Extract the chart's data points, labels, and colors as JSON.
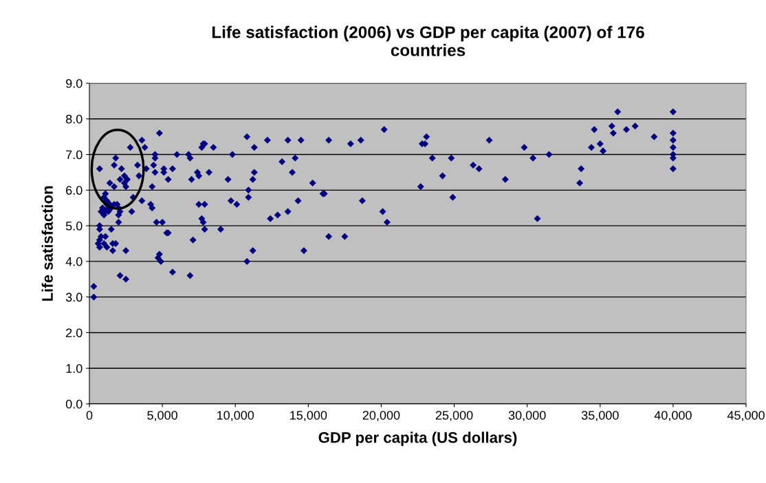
{
  "chart_data": {
    "type": "scatter",
    "title": "Life satisfaction (2006) vs GDP per capita (2007) of 176 countries",
    "xlabel": "GDP per capita (US dollars)",
    "ylabel": "Life satisfaction",
    "marker": "diamond",
    "grid": "y",
    "legend": false,
    "xlim": [
      0,
      45000
    ],
    "ylim": [
      0,
      9
    ],
    "xticks": [
      0,
      {
        "value": 5000,
        "label": "5,000"
      },
      {
        "value": 10000,
        "label": "10,000"
      },
      {
        "value": 15000,
        "label": "15,000"
      },
      {
        "value": 20000,
        "label": "20,000"
      },
      {
        "value": 25000,
        "label": "25,000"
      },
      {
        "value": 30000,
        "label": "30,000"
      },
      {
        "value": 35000,
        "label": "35,000"
      },
      {
        "value": 40000,
        "label": "40,000"
      },
      {
        "value": 45000,
        "label": "45,000"
      }
    ],
    "yticks": [
      {
        "value": 0,
        "label": "0.0"
      },
      {
        "value": 1,
        "label": "1.0"
      },
      {
        "value": 2,
        "label": "2.0"
      },
      {
        "value": 3,
        "label": "3.0"
      },
      {
        "value": 4,
        "label": "4.0"
      },
      {
        "value": 5,
        "label": "5.0"
      },
      {
        "value": 6,
        "label": "6.0"
      },
      {
        "value": 7,
        "label": "7.0"
      },
      {
        "value": 8,
        "label": "8.0"
      },
      {
        "value": 9,
        "label": "9.0"
      }
    ],
    "series": [
      {
        "color": "#000080",
        "x": [
          300,
          300,
          700,
          600,
          700,
          800,
          700,
          700,
          800,
          1000,
          1000,
          1100,
          700,
          1100,
          1200,
          1000,
          1200,
          1300,
          1300,
          1500,
          1400,
          1700,
          1800,
          1700,
          1600,
          1600,
          1800,
          1700,
          1900,
          2000,
          2000,
          2100,
          2000,
          2200,
          2100,
          2400,
          2400,
          2500,
          2600,
          2500,
          2100,
          2500,
          2800,
          2900,
          3000,
          3300,
          3400,
          3600,
          3600,
          3800,
          3900,
          1200,
          1400,
          1500,
          900,
          1100,
          4200,
          4300,
          4300,
          4400,
          4500,
          4500,
          4500,
          4600,
          4700,
          4800,
          4800,
          5000,
          4900,
          5100,
          5100,
          5300,
          5400,
          5400,
          5700,
          5700,
          6000,
          6800,
          6900,
          6900,
          7000,
          7100,
          7400,
          7500,
          7500,
          7700,
          7800,
          7900,
          7700,
          7800,
          7900,
          7900,
          8200,
          8500,
          9000,
          9500,
          9700,
          9800,
          10100,
          10800,
          10900,
          10900,
          10800,
          11200,
          11300,
          11200,
          11300,
          12200,
          12400,
          12900,
          13200,
          13600,
          13600,
          13900,
          14100,
          14300,
          14500,
          14700,
          15300,
          16000,
          16100,
          16400,
          16400,
          17500,
          17900,
          18600,
          18700,
          20100,
          20200,
          20400,
          22700,
          22800,
          23000,
          23100,
          23500,
          24200,
          24800,
          24900,
          26300,
          26700,
          27400,
          28500,
          29800,
          30400,
          30700,
          31500,
          33600,
          33700,
          34400,
          34600,
          35000,
          35200,
          35800,
          35900,
          36200,
          36800,
          37400,
          38700,
          40000,
          40000,
          40000,
          40000,
          40000,
          40000,
          40000
        ],
        "values": [
          3.3,
          3.0,
          4.4,
          4.5,
          4.6,
          4.7,
          4.9,
          5.0,
          5.4,
          5.3,
          5.8,
          5.9,
          6.6,
          4.7,
          4.4,
          4.5,
          5.6,
          5.5,
          5.4,
          4.9,
          6.2,
          6.7,
          6.9,
          6.1,
          4.5,
          4.3,
          4.5,
          5.6,
          5.6,
          5.5,
          5.3,
          5.4,
          5.1,
          6.6,
          6.3,
          6.4,
          6.2,
          6.1,
          6.3,
          4.3,
          3.6,
          3.5,
          7.2,
          5.4,
          5.8,
          6.7,
          6.4,
          5.7,
          7.4,
          7.2,
          6.6,
          5.7,
          5.6,
          5.5,
          5.5,
          5.4,
          5.6,
          5.5,
          6.1,
          6.7,
          7.0,
          6.9,
          6.5,
          5.1,
          4.1,
          4.2,
          7.6,
          5.1,
          4.0,
          6.6,
          6.5,
          4.8,
          4.8,
          6.3,
          6.6,
          3.7,
          7.0,
          7.0,
          6.9,
          3.6,
          6.3,
          4.6,
          6.5,
          6.4,
          5.6,
          5.2,
          5.1,
          5.6,
          7.2,
          7.3,
          7.3,
          4.9,
          6.5,
          7.2,
          4.9,
          6.3,
          5.7,
          7.0,
          5.6,
          7.5,
          6.0,
          5.8,
          4.0,
          6.3,
          6.5,
          4.3,
          7.2,
          7.4,
          5.2,
          5.3,
          6.8,
          7.4,
          5.4,
          6.5,
          6.9,
          5.7,
          7.4,
          4.3,
          6.2,
          5.9,
          5.9,
          7.4,
          4.7,
          4.7,
          7.3,
          7.4,
          5.7,
          5.4,
          7.7,
          5.1,
          6.1,
          7.3,
          7.3,
          7.5,
          6.9,
          6.4,
          6.9,
          5.8,
          6.7,
          6.6,
          7.4,
          6.3,
          7.2,
          6.9,
          5.2,
          7.0,
          6.2,
          6.6,
          7.2,
          7.7,
          7.3,
          7.1,
          7.8,
          7.6,
          8.2,
          7.7,
          7.8,
          7.5,
          8.2,
          7.6,
          7.4,
          7.2,
          7.0,
          6.9,
          6.6
        ]
      }
    ]
  }
}
